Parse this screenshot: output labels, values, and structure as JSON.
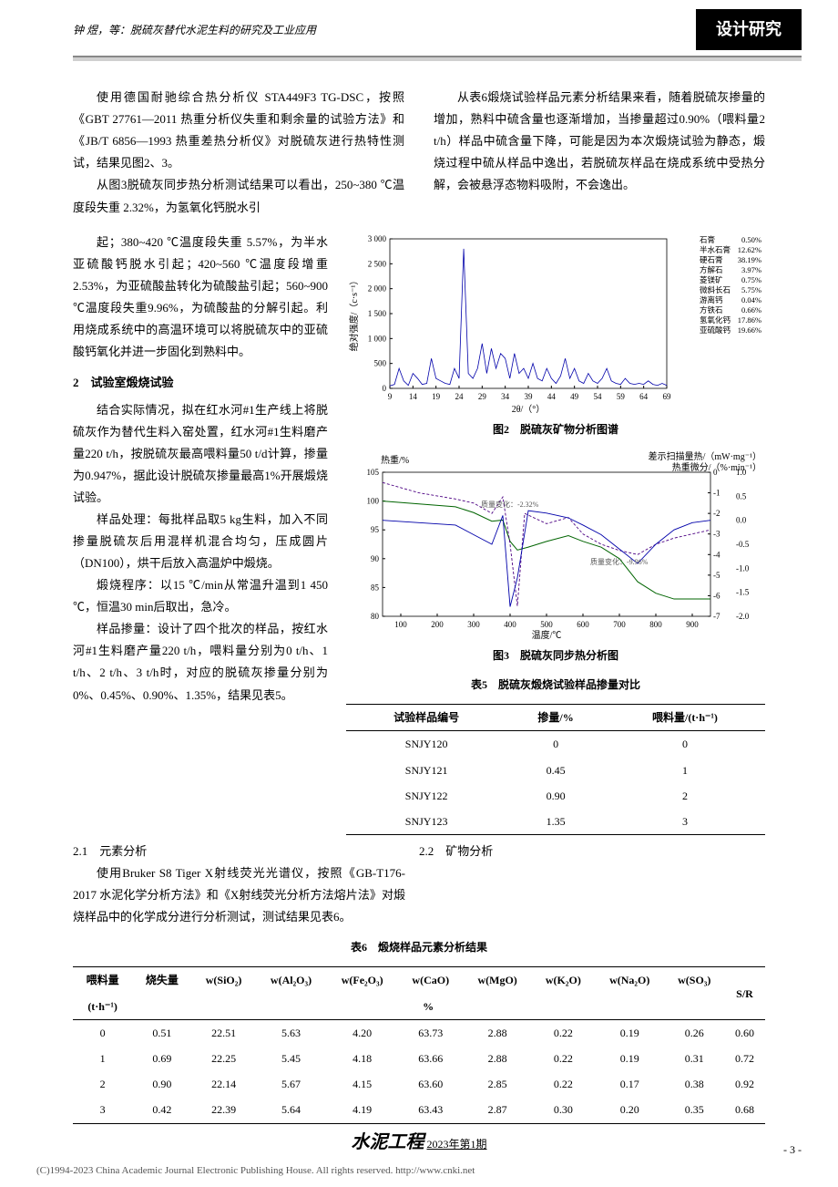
{
  "header": {
    "left": "钟 煜，等：脱硫灰替代水泥生料的研究及工业应用",
    "badge": "设计研究"
  },
  "body": {
    "p1": "使用德国耐驰综合热分析仪 STA449F3 TG-DSC，按照《GBT 27761—2011 热重分析仪失重和剩余量的试验方法》和《JB/T 6856—1993 热重差热分析仪》对脱硫灰进行热特性测试，结果见图2、3。",
    "p2": "从图3脱硫灰同步热分析测试结果可以看出，250~380 ℃温度段失重 2.32%，为氢氧化钙脱水引",
    "p2r": "从表6煅烧试验样品元素分析结果来看，随着脱硫灰掺量的增加，熟料中硫含量也逐渐增加，当掺量超过0.90%（喂料量2 t/h）样品中硫含量下降，可能是因为本次煅烧试验为静态，煅烧过程中硫从样品中逸出，若脱硫灰样品在烧成系统中受热分解，会被悬浮态物料吸附，不会逸出。",
    "p3": "起；380~420 ℃温度段失重 5.57%，为半水亚硫酸钙脱水引起；420~560 ℃温度段增重 2.53%，为亚硫酸盐转化为硫酸盐引起；560~900 ℃温度段失重9.96%，为硫酸盐的分解引起。利用烧成系统中的高温环境可以将脱硫灰中的亚硫酸钙氧化并进一步固化到熟料中。",
    "h2_1": "2　试验室煅烧试验",
    "p4": "结合实际情况，拟在红水河#1生产线上将脱硫灰作为替代生料入窑处置，红水河#1生料磨产量220 t/h，按脱硫灰最高喂料量50 t/d计算，掺量为0.947%，据此设计脱硫灰掺量最高1%开展煅烧试验。",
    "p5": "样品处理：每批样品取5 kg生料，加入不同掺量脱硫灰后用混样机混合均匀，压成圆片（DN100），烘干后放入高温炉中煅烧。",
    "p6": "煅烧程序：以15 ℃/min从常温升温到1 450 ℃，恒温30 min后取出，急冷。",
    "p7": "样品掺量：设计了四个批次的样品，按红水河#1生料磨产量220 t/h，喂料量分别为0 t/h、1 t/h、2 t/h、3 t/h时，对应的脱硫灰掺量分别为0%、0.45%、0.90%、1.35%，结果见表5。",
    "h2_2": "2.1　元素分析",
    "p8": "使用Bruker S8 Tiger X射线荧光光谱仪，按照《GB-T176-2017 水泥化学分析方法》和《X射线荧光分析方法熔片法》对煅烧样品中的化学成分进行分析测试，测试结果见表6。",
    "h2_3": "2.2　矿物分析"
  },
  "fig2": {
    "caption": "图2　脱硫灰矿物分析图谱",
    "ylabel": "绝对强度/（c·s⁻¹）",
    "xlabel": "2θ/（°）",
    "xticks": [
      9,
      14,
      19,
      24,
      29,
      34,
      39,
      44,
      49,
      54,
      59,
      64,
      69
    ],
    "yticks": [
      0,
      500,
      1000,
      1500,
      2000,
      2500,
      3000
    ],
    "ylim": [
      0,
      3000
    ],
    "xlim": [
      9,
      69
    ],
    "legend": [
      {
        "name": "石膏",
        "val": "0.50%"
      },
      {
        "name": "半水石膏",
        "val": "12.62%"
      },
      {
        "name": "硬石膏",
        "val": "38.19%"
      },
      {
        "name": "方解石",
        "val": "3.97%"
      },
      {
        "name": "菱镁矿",
        "val": "0.75%"
      },
      {
        "name": "微斜长石",
        "val": "5.75%"
      },
      {
        "name": "游离钙",
        "val": "0.04%"
      },
      {
        "name": "方铁石",
        "val": "0.66%"
      },
      {
        "name": "氢氧化钙",
        "val": "17.86%"
      },
      {
        "name": "亚硫酸钙",
        "val": "19.66%"
      }
    ],
    "line_color": "#0000aa",
    "peaks": [
      [
        9,
        50
      ],
      [
        10,
        80
      ],
      [
        11,
        400
      ],
      [
        12,
        150
      ],
      [
        13,
        60
      ],
      [
        14,
        300
      ],
      [
        15,
        200
      ],
      [
        16,
        80
      ],
      [
        17,
        100
      ],
      [
        18,
        600
      ],
      [
        19,
        200
      ],
      [
        20,
        150
      ],
      [
        21,
        100
      ],
      [
        22,
        80
      ],
      [
        23,
        400
      ],
      [
        24,
        200
      ],
      [
        25,
        2800
      ],
      [
        26,
        300
      ],
      [
        27,
        200
      ],
      [
        28,
        400
      ],
      [
        29,
        900
      ],
      [
        30,
        300
      ],
      [
        31,
        800
      ],
      [
        32,
        400
      ],
      [
        33,
        700
      ],
      [
        34,
        600
      ],
      [
        35,
        200
      ],
      [
        36,
        700
      ],
      [
        37,
        300
      ],
      [
        38,
        400
      ],
      [
        39,
        200
      ],
      [
        40,
        500
      ],
      [
        41,
        200
      ],
      [
        42,
        150
      ],
      [
        43,
        400
      ],
      [
        44,
        200
      ],
      [
        45,
        100
      ],
      [
        46,
        250
      ],
      [
        47,
        600
      ],
      [
        48,
        200
      ],
      [
        49,
        400
      ],
      [
        50,
        150
      ],
      [
        51,
        100
      ],
      [
        52,
        300
      ],
      [
        53,
        150
      ],
      [
        54,
        100
      ],
      [
        55,
        200
      ],
      [
        56,
        400
      ],
      [
        57,
        150
      ],
      [
        58,
        100
      ],
      [
        59,
        80
      ],
      [
        60,
        200
      ],
      [
        61,
        100
      ],
      [
        62,
        80
      ],
      [
        63,
        100
      ],
      [
        64,
        80
      ],
      [
        65,
        150
      ],
      [
        66,
        80
      ],
      [
        67,
        60
      ],
      [
        68,
        100
      ],
      [
        69,
        60
      ]
    ]
  },
  "fig3": {
    "caption": "图3　脱硫灰同步热分析图",
    "left_label": "热重/%",
    "right_label_top": "差示扫描量热/（mW·mg⁻¹）",
    "right_label_bot": "热重微分/（%·min⁻¹）",
    "xlabel": "温度/℃",
    "xticks": [
      100,
      200,
      300,
      400,
      500,
      600,
      700,
      800,
      900
    ],
    "yticks_left": [
      80,
      85,
      90,
      95,
      100,
      105
    ],
    "yticks_r1": [
      -7,
      -6,
      -5,
      -4,
      -3,
      -2,
      -1,
      0
    ],
    "yticks_r2": [
      "-2.0",
      "-1.5",
      "-1.0",
      "-0.5",
      "0.0",
      "0.5",
      "1.0"
    ],
    "anno1": "质量变化：-2.32%",
    "anno2": "质量变化：-9.96%",
    "tg_color": "#006400",
    "dtg_color": "#0000aa",
    "dsc_color": "#4b0082",
    "tg": [
      [
        50,
        100
      ],
      [
        150,
        99.5
      ],
      [
        250,
        99
      ],
      [
        300,
        98
      ],
      [
        350,
        96.5
      ],
      [
        380,
        96.7
      ],
      [
        400,
        93
      ],
      [
        420,
        91.5
      ],
      [
        450,
        92
      ],
      [
        500,
        93
      ],
      [
        560,
        94
      ],
      [
        600,
        93
      ],
      [
        650,
        92
      ],
      [
        700,
        90
      ],
      [
        750,
        86
      ],
      [
        800,
        84
      ],
      [
        850,
        83
      ],
      [
        900,
        83
      ],
      [
        950,
        83
      ]
    ],
    "dtg": [
      [
        50,
        0
      ],
      [
        150,
        -0.05
      ],
      [
        250,
        -0.1
      ],
      [
        300,
        -0.3
      ],
      [
        350,
        -0.5
      ],
      [
        380,
        0.1
      ],
      [
        400,
        -1.8
      ],
      [
        420,
        -1.2
      ],
      [
        450,
        0.2
      ],
      [
        500,
        0.15
      ],
      [
        560,
        0.05
      ],
      [
        600,
        -0.1
      ],
      [
        650,
        -0.3
      ],
      [
        700,
        -0.6
      ],
      [
        750,
        -0.9
      ],
      [
        800,
        -0.5
      ],
      [
        850,
        -0.2
      ],
      [
        900,
        -0.05
      ],
      [
        950,
        0
      ]
    ],
    "dsc": [
      [
        50,
        -0.5
      ],
      [
        150,
        -1
      ],
      [
        250,
        -1.3
      ],
      [
        300,
        -1.5
      ],
      [
        350,
        -2
      ],
      [
        380,
        -1.2
      ],
      [
        400,
        -3.5
      ],
      [
        420,
        -6.5
      ],
      [
        440,
        -2
      ],
      [
        500,
        -2.5
      ],
      [
        560,
        -2.2
      ],
      [
        600,
        -3
      ],
      [
        650,
        -3.5
      ],
      [
        700,
        -3.8
      ],
      [
        750,
        -4
      ],
      [
        800,
        -3.5
      ],
      [
        850,
        -3.2
      ],
      [
        900,
        -3
      ],
      [
        950,
        -2.8
      ]
    ]
  },
  "table5": {
    "caption": "表5　脱硫灰煅烧试验样品掺量对比",
    "cols": [
      "试验样品编号",
      "掺量/%",
      "喂料量/(t·h⁻¹)"
    ],
    "rows": [
      [
        "SNJY120",
        "0",
        "0"
      ],
      [
        "SNJY121",
        "0.45",
        "1"
      ],
      [
        "SNJY122",
        "0.90",
        "2"
      ],
      [
        "SNJY123",
        "1.35",
        "3"
      ]
    ]
  },
  "table6": {
    "caption": "表6　煅烧样品元素分析结果",
    "h1": [
      "喂料量",
      "烧失量",
      "w(SiO₂)",
      "w(Al₂O₃)",
      "w(Fe₂O₃)",
      "w(CaO)",
      "w(MgO)",
      "w(K₂O)",
      "w(Na₂O)",
      "w(SO₃)",
      "S/R"
    ],
    "h2_left": "(t·h⁻¹)",
    "h2_unit": "%",
    "rows": [
      [
        "0",
        "0.51",
        "22.51",
        "5.63",
        "4.20",
        "63.73",
        "2.88",
        "0.22",
        "0.19",
        "0.26",
        "0.60"
      ],
      [
        "1",
        "0.69",
        "22.25",
        "5.45",
        "4.18",
        "63.66",
        "2.88",
        "0.22",
        "0.19",
        "0.31",
        "0.72"
      ],
      [
        "2",
        "0.90",
        "22.14",
        "5.67",
        "4.15",
        "63.60",
        "2.85",
        "0.22",
        "0.17",
        "0.38",
        "0.92"
      ],
      [
        "3",
        "0.42",
        "22.39",
        "5.64",
        "4.19",
        "63.43",
        "2.87",
        "0.30",
        "0.20",
        "0.35",
        "0.68"
      ]
    ]
  },
  "footer": {
    "brand": "水泥工程",
    "issue": "2023年第1期",
    "page": "- 3 -",
    "copyright": "(C)1994-2023 China Academic Journal Electronic Publishing House. All rights reserved.    http://www.cnki.net"
  }
}
